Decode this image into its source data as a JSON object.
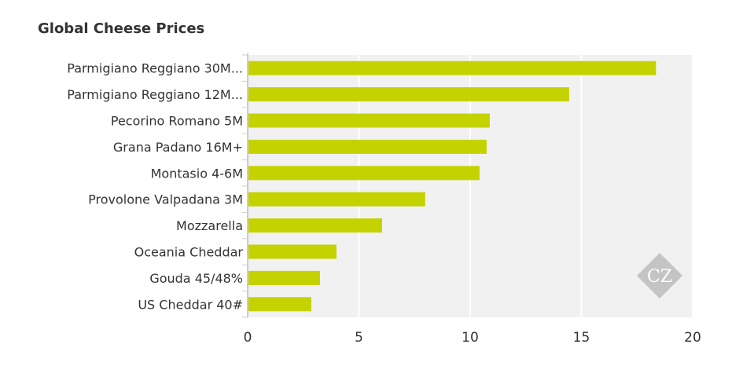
{
  "chart_data": {
    "type": "bar",
    "orientation": "horizontal",
    "title": "Global Cheese Prices",
    "categories": [
      "Parmigiano Reggiano 30M...",
      "Parmigiano Reggiano 12M...",
      "Pecorino Romano 5M",
      "Grana Padano 16M+",
      "Montasio 4-6M",
      "Provolone Valpadana 3M",
      "Mozzarella",
      "Oceania Cheddar",
      "Gouda 45/48%",
      "US Cheddar 40#"
    ],
    "values": [
      18.35,
      14.45,
      10.88,
      10.74,
      10.42,
      7.98,
      6.04,
      3.99,
      3.25,
      2.86
    ],
    "xlim": [
      0,
      20
    ],
    "xticks": [
      "0",
      "5",
      "10",
      "15",
      "20"
    ],
    "xlabel": "",
    "ylabel": "",
    "grid": true,
    "legend": "none",
    "bar_color": "#c4d200",
    "plot_bg": "#f1f1f1",
    "watermark": "CZ"
  }
}
